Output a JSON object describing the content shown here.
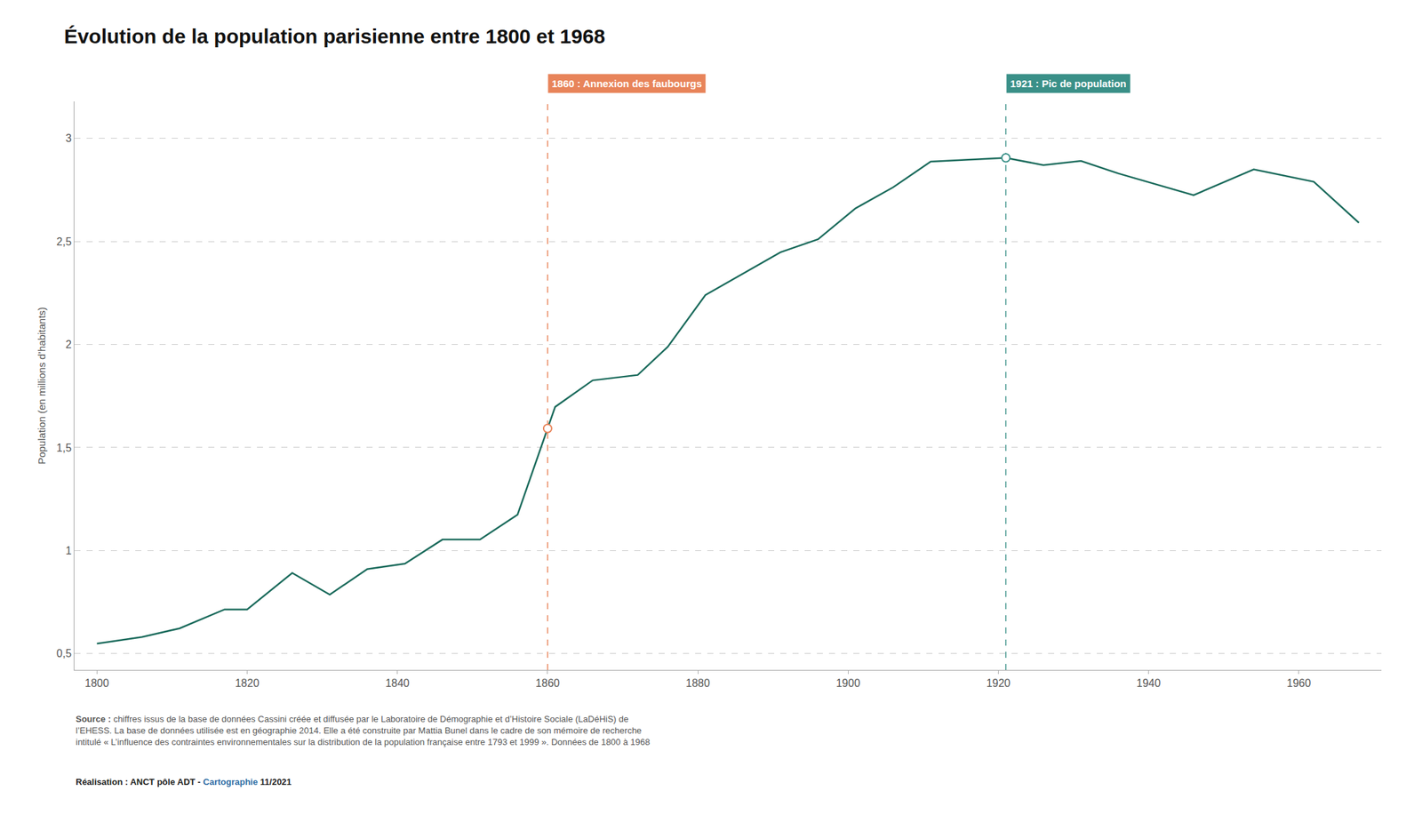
{
  "chart_data": {
    "type": "line",
    "title": "Évolution de la population parisienne entre 1800 et 1968",
    "y_label": "Population (en millions d’habitants)",
    "x": [
      1800,
      1806,
      1811,
      1817,
      1820,
      1826,
      1831,
      1836,
      1841,
      1846,
      1851,
      1856,
      1861,
      1866,
      1872,
      1876,
      1881,
      1886,
      1891,
      1896,
      1901,
      1906,
      1911,
      1921,
      1926,
      1931,
      1936,
      1946,
      1954,
      1962,
      1968
    ],
    "values": [
      0.548,
      0.58,
      0.622,
      0.714,
      0.714,
      0.891,
      0.786,
      0.91,
      0.936,
      1.053,
      1.053,
      1.174,
      1.697,
      1.826,
      1.852,
      1.989,
      2.24,
      2.344,
      2.448,
      2.511,
      2.661,
      2.763,
      2.888,
      2.906,
      2.871,
      2.891,
      2.83,
      2.725,
      2.85,
      2.79,
      2.591
    ],
    "color": "#1b6b5c",
    "xlim": [
      1797,
      1971
    ],
    "xticks": [
      1800,
      1820,
      1840,
      1860,
      1880,
      1900,
      1920,
      1940,
      1960
    ],
    "ylim": [
      0.42,
      3.18
    ],
    "yticks": [
      {
        "value": 0.5,
        "label": "0,5"
      },
      1,
      {
        "value": 1.5,
        "label": "1,5"
      },
      2,
      {
        "value": 2.5,
        "label": "2,5"
      },
      3
    ],
    "grid": true,
    "annotations": [
      {
        "x": 1860,
        "y": 1.5924,
        "label": "1860 : Annexion des faubourgs",
        "color": "#e8845a"
      },
      {
        "x": 1921,
        "y": 2.906,
        "label": "1921 : Pic de population",
        "color": "#3a9088"
      }
    ],
    "source": {
      "label": "Source :",
      "text": " chiffres issus de la base de données Cassini créée et diffusée par le Laboratoire de Démographie et d’Histoire Sociale (LaDéHiS) de\nl’EHESS. La base de données utilisée est en géographie 2014. Elle a été construite par Mattia Bunel dans le cadre de son mémoire de recherche\nintitulé « L’influence des contraintes environnementales sur la distribution de la population française entre 1793 et 1999 ». Données de 1800 à 1968"
    },
    "credit": [
      {
        "text": "Réalisation :"
      },
      {
        "text": " ANCT pôle ADT - "
      },
      {
        "text": "Cartographie",
        "color": "#2e6da4"
      },
      {
        "text": " 11/2021"
      }
    ]
  }
}
